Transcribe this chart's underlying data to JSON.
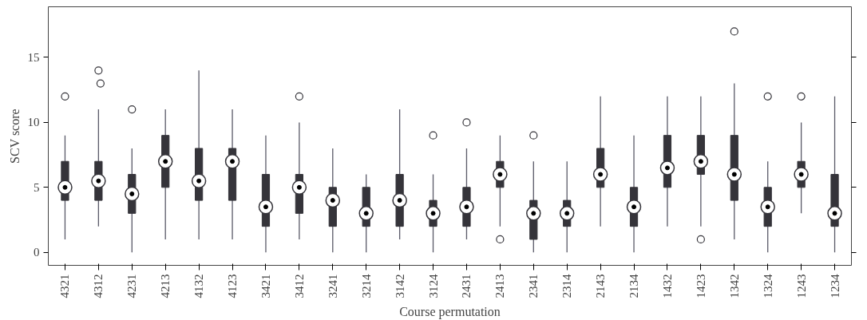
{
  "chart_data": {
    "type": "box",
    "xlabel": "Course permutation",
    "ylabel": "SCV score",
    "categories": [
      "4321",
      "4312",
      "4231",
      "4213",
      "4132",
      "4123",
      "3421",
      "3412",
      "3241",
      "3214",
      "3142",
      "3124",
      "2431",
      "2413",
      "2341",
      "2314",
      "2143",
      "2134",
      "1432",
      "1423",
      "1342",
      "1324",
      "1243",
      "1234"
    ],
    "ylim": [
      -1,
      18.9
    ],
    "yticks": [
      0,
      5,
      10,
      15
    ],
    "grid": false,
    "color": "#35343a",
    "boxes": [
      {
        "low": 1,
        "q1": 4,
        "median": 5,
        "q3": 7,
        "high": 9,
        "outliers": [
          12
        ]
      },
      {
        "low": 2,
        "q1": 4,
        "median": 5.5,
        "q3": 7,
        "high": 11,
        "outliers": [
          14,
          13
        ]
      },
      {
        "low": 0,
        "q1": 3,
        "median": 4.5,
        "q3": 6,
        "high": 8,
        "outliers": [
          11
        ]
      },
      {
        "low": 1,
        "q1": 5,
        "median": 7,
        "q3": 9,
        "high": 11
      },
      {
        "low": 1,
        "q1": 4,
        "median": 5.5,
        "q3": 8,
        "high": 14
      },
      {
        "low": 1,
        "q1": 4,
        "median": 7,
        "q3": 8,
        "high": 11
      },
      {
        "low": 0,
        "q1": 2,
        "median": 3.5,
        "q3": 6,
        "high": 9
      },
      {
        "low": 1,
        "q1": 3,
        "median": 5,
        "q3": 6,
        "high": 10,
        "outliers": [
          12
        ]
      },
      {
        "low": 0,
        "q1": 2,
        "median": 4,
        "q3": 5,
        "high": 8
      },
      {
        "low": 0,
        "q1": 2,
        "median": 3,
        "q3": 5,
        "high": 6
      },
      {
        "low": 1,
        "q1": 2,
        "median": 4,
        "q3": 6,
        "high": 11
      },
      {
        "low": 0,
        "q1": 2,
        "median": 3,
        "q3": 4,
        "high": 6,
        "outliers": [
          9
        ]
      },
      {
        "low": 1,
        "q1": 2,
        "median": 3.5,
        "q3": 5,
        "high": 8,
        "outliers": [
          10
        ]
      },
      {
        "low": 2,
        "q1": 5,
        "median": 6,
        "q3": 7,
        "high": 9,
        "outliers": [
          1
        ]
      },
      {
        "low": 0,
        "q1": 1,
        "median": 3,
        "q3": 4,
        "high": 7,
        "outliers": [
          9
        ]
      },
      {
        "low": 0,
        "q1": 2,
        "median": 3,
        "q3": 4,
        "high": 7
      },
      {
        "low": 2,
        "q1": 5,
        "median": 6,
        "q3": 8,
        "high": 12
      },
      {
        "low": 0,
        "q1": 2,
        "median": 3.5,
        "q3": 5,
        "high": 9
      },
      {
        "low": 2,
        "q1": 5,
        "median": 6.5,
        "q3": 9,
        "high": 12
      },
      {
        "low": 2,
        "q1": 6,
        "median": 7,
        "q3": 9,
        "high": 12,
        "outliers": [
          1
        ]
      },
      {
        "low": 1,
        "q1": 4,
        "median": 6,
        "q3": 9,
        "high": 13,
        "outliers": [
          17
        ]
      },
      {
        "low": 0,
        "q1": 2,
        "median": 3.5,
        "q3": 5,
        "high": 7,
        "outliers": [
          12
        ]
      },
      {
        "low": 3,
        "q1": 5,
        "median": 6,
        "q3": 7,
        "high": 10,
        "outliers": [
          12
        ]
      },
      {
        "low": 0,
        "q1": 2,
        "median": 3,
        "q3": 6,
        "high": 12
      }
    ]
  }
}
